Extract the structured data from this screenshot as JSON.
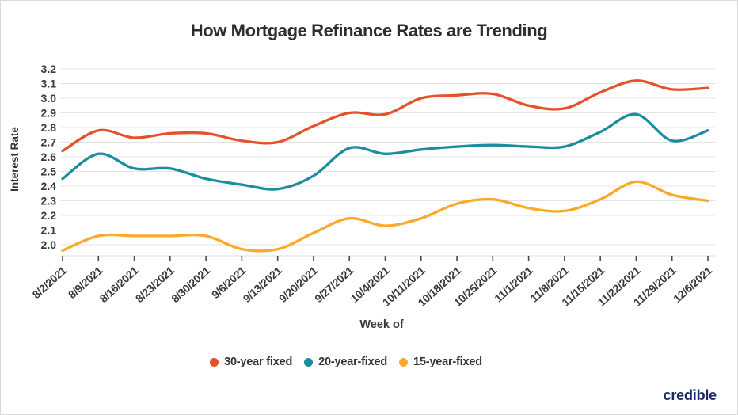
{
  "page": {
    "title": "How Mortgage Refinance Rates are Trending",
    "logo_text": "credible"
  },
  "chart_data": {
    "type": "line",
    "title": "How Mortgage Refinance Rates are Trending",
    "xlabel": "Week of",
    "ylabel": "Interest Rate",
    "ylim": [
      2.0,
      3.2
    ],
    "yticks": [
      3.2,
      3.1,
      3.0,
      2.9,
      2.8,
      2.7,
      2.6,
      2.5,
      2.4,
      2.3,
      2.2,
      2.1,
      2.0
    ],
    "grid": true,
    "line_style": "smooth",
    "legend_position": "bottom",
    "categories": [
      "8/2/2021",
      "8/9/2021",
      "8/16/2021",
      "8/23/2021",
      "8/30/2021",
      "9/6/2021",
      "9/13/2021",
      "9/20/2021",
      "9/27/2021",
      "10/4/2021",
      "10/11/2021",
      "10/18/2021",
      "10/25/2021",
      "11/1/2021",
      "11/8/2021",
      "11/15/2021",
      "11/22/2021",
      "11/29/2021",
      "12/6/2021"
    ],
    "series": [
      {
        "name": "30-year fixed",
        "color": "#E4512A",
        "values": [
          2.64,
          2.78,
          2.73,
          2.76,
          2.76,
          2.71,
          2.7,
          2.81,
          2.9,
          2.89,
          3.0,
          3.02,
          3.03,
          2.95,
          2.93,
          3.04,
          3.12,
          3.06,
          3.07
        ]
      },
      {
        "name": "20-year-fixed",
        "color": "#1C8C9E",
        "values": [
          2.45,
          2.62,
          2.52,
          2.52,
          2.45,
          2.41,
          2.38,
          2.47,
          2.66,
          2.62,
          2.65,
          2.67,
          2.68,
          2.67,
          2.67,
          2.77,
          2.89,
          2.71,
          2.78
        ]
      },
      {
        "name": "15-year-fixed",
        "color": "#FAA928",
        "values": [
          1.96,
          2.06,
          2.06,
          2.06,
          2.06,
          1.97,
          1.97,
          2.08,
          2.18,
          2.13,
          2.18,
          2.28,
          2.31,
          2.25,
          2.23,
          2.31,
          2.43,
          2.34,
          2.3
        ]
      }
    ]
  },
  "colors": {
    "background": "#FFFFFF",
    "border": "#DADADA",
    "title_text": "#2D2D2D",
    "axis_text": "#3A3A3A",
    "gridline": "#E4E4E4",
    "axis_line": "#DDDDDD",
    "tick": "#4A4A4A",
    "logo_navy": "#1B2A63",
    "logo_green": "#24A87C"
  }
}
